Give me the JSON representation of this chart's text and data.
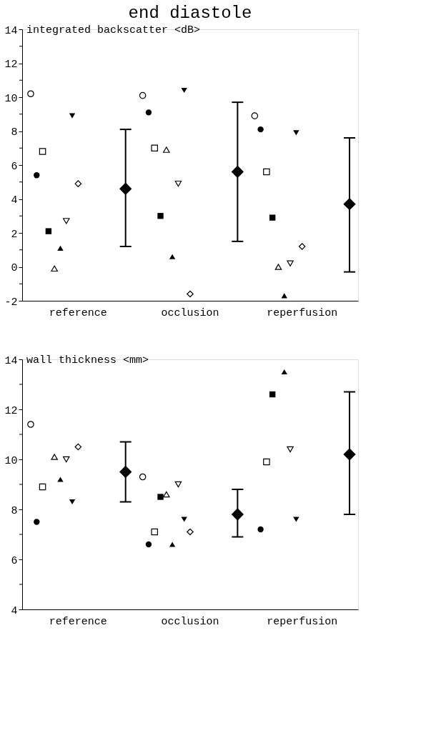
{
  "chart_data": [
    {
      "type": "scatter",
      "title": "end diastole",
      "ylabel": "integrated backscatter <dB>",
      "categories": [
        "reference",
        "occlusion",
        "reperfusion"
      ],
      "ylim": [
        -2,
        14
      ],
      "yticks": [
        -2,
        {
          "value": -1,
          "label": null
        },
        0,
        {
          "value": 1,
          "label": null
        },
        2,
        {
          "value": 3,
          "label": null
        },
        4,
        {
          "value": 5,
          "label": null
        },
        6,
        {
          "value": 7,
          "label": null
        },
        8,
        {
          "value": 9,
          "label": null
        },
        10,
        {
          "value": 11,
          "label": null
        },
        12,
        {
          "value": 13,
          "label": null
        },
        14
      ],
      "grid": false,
      "series": [
        {
          "color": "#000000",
          "marker": "circle",
          "values": [
            10.2,
            10.1,
            8.9
          ]
        },
        {
          "color": "#000000",
          "marker": "circle",
          "values": [
            5.4,
            9.1,
            8.1
          ]
        },
        {
          "color": "#000000",
          "marker": "square",
          "values": [
            6.8,
            7.0,
            5.6
          ]
        },
        {
          "color": "#000000",
          "marker": "square",
          "values": [
            2.1,
            3.0,
            2.9
          ]
        },
        {
          "color": "#000000",
          "marker": "triangle",
          "values": [
            -0.1,
            6.9,
            0.0
          ]
        },
        {
          "color": "#000000",
          "marker": "triangle",
          "values": [
            1.1,
            0.6,
            -1.7
          ]
        },
        {
          "color": "#000000",
          "marker": "triangle_down",
          "values": [
            2.7,
            4.9,
            0.2
          ]
        },
        {
          "color": "#000000",
          "marker": "triangle_down",
          "values": [
            8.9,
            10.4,
            7.9
          ]
        },
        {
          "color": "#000000",
          "marker": "diamond",
          "values": [
            4.9,
            -1.6,
            1.2
          ]
        },
        {
          "color": "#000000",
          "marker": "diamond",
          "values": [
            4.6,
            5.6,
            3.7
          ],
          "errors": [
            [
              1.2,
              8.1
            ],
            [
              1.5,
              9.7
            ],
            [
              -0.3,
              7.6
            ]
          ]
        }
      ]
    },
    {
      "type": "scatter",
      "ylabel": "wall thickness <mm>",
      "categories": [
        "reference",
        "occlusion",
        "reperfusion"
      ],
      "ylim": [
        4,
        14
      ],
      "yticks": [
        4,
        {
          "value": 5,
          "label": null
        },
        6,
        {
          "value": 7,
          "label": null
        },
        8,
        {
          "value": 9,
          "label": null
        },
        10,
        {
          "value": 11,
          "label": null
        },
        12,
        {
          "value": 13,
          "label": null
        },
        14
      ],
      "grid": false,
      "series": [
        {
          "color": "#000000",
          "marker": "circle",
          "values": [
            11.4,
            9.3,
            null
          ]
        },
        {
          "color": "#000000",
          "marker": "circle",
          "values": [
            7.5,
            6.6,
            7.2
          ]
        },
        {
          "color": "#000000",
          "marker": "square",
          "values": [
            8.9,
            7.1,
            9.9
          ]
        },
        {
          "color": "#000000",
          "marker": "square",
          "values": [
            null,
            8.5,
            12.6
          ]
        },
        {
          "color": "#000000",
          "marker": "triangle",
          "values": [
            10.1,
            8.6,
            null
          ]
        },
        {
          "color": "#000000",
          "marker": "triangle",
          "values": [
            9.2,
            6.6,
            13.5
          ]
        },
        {
          "color": "#000000",
          "marker": "triangle_down",
          "values": [
            10.0,
            9.0,
            10.4
          ]
        },
        {
          "color": "#000000",
          "marker": "triangle_down",
          "values": [
            8.3,
            7.6,
            7.6
          ]
        },
        {
          "color": "#000000",
          "marker": "diamond",
          "values": [
            10.5,
            7.1,
            null
          ]
        },
        {
          "color": "#000000",
          "marker": "diamond",
          "values": [
            9.5,
            7.8,
            10.2
          ],
          "errors": [
            [
              8.3,
              10.7
            ],
            [
              6.9,
              8.8
            ],
            [
              7.8,
              12.7
            ]
          ]
        }
      ]
    }
  ]
}
